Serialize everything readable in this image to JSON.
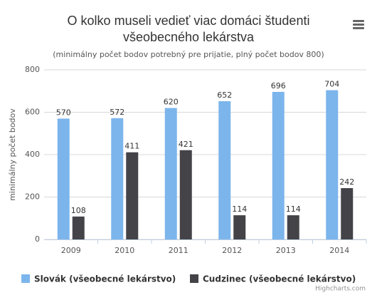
{
  "chart_data": {
    "type": "bar",
    "title": "O kolko museli vedieť viac domáci študenti všeobecného lekárstva",
    "subtitle": "(minimálny počet bodov potrebný pre prijatie, plný počet bodov 800)",
    "y_label": "minimálny počet bodov",
    "categories": [
      "2009",
      "2010",
      "2011",
      "2012",
      "2013",
      "2014"
    ],
    "series": [
      {
        "name": "Slovák (všeobecné lekárstvo)",
        "color": "#7cb5ec",
        "values": [
          570,
          572,
          620,
          652,
          696,
          704
        ]
      },
      {
        "name": "Cudzinec (všeobecné lekárstvo)",
        "color": "#434348",
        "values": [
          108,
          411,
          421,
          114,
          114,
          242
        ]
      }
    ],
    "ylim": [
      0,
      800
    ],
    "yticks": [
      0,
      200,
      400,
      600,
      800
    ],
    "grid": true,
    "credits": "Highcharts.com"
  }
}
